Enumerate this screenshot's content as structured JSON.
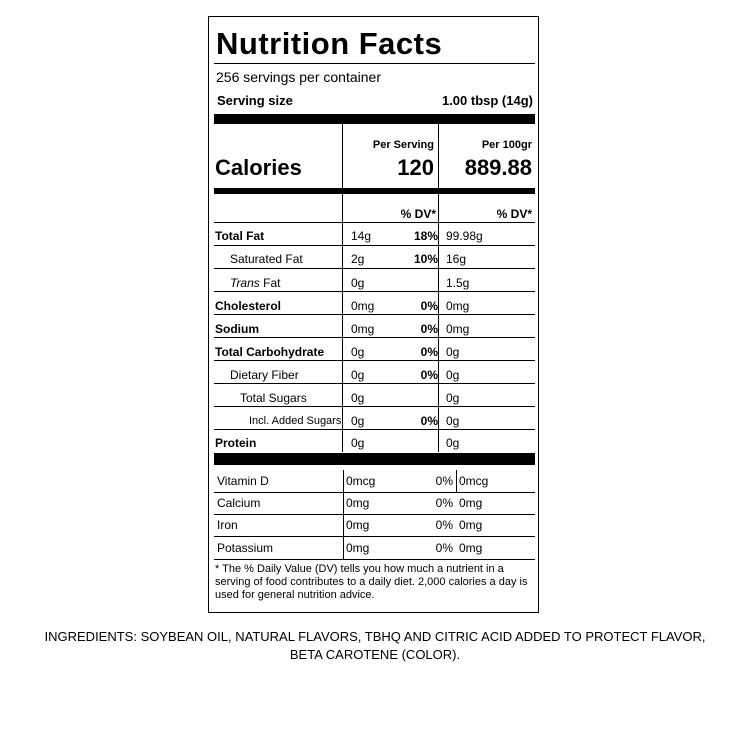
{
  "label": {
    "title": "Nutrition Facts",
    "servings_per_container": "256 servings per container",
    "serving_size_label": "Serving size",
    "serving_size_value": "1.00 tbsp (14g)",
    "per_serving_header": "Per Serving",
    "per_100_header": "Per 100gr",
    "calories_label": "Calories",
    "calories_per_serving": "120",
    "calories_per_100": "889.88",
    "dv_header_1": "% DV*",
    "dv_header_2": "% DV*",
    "nutrients": [
      {
        "name": "Total Fat",
        "amount": "14g",
        "dv": "18%",
        "amount_100": "99.98g"
      },
      {
        "name": "Saturated Fat",
        "amount": "2g",
        "dv": "10%",
        "amount_100": "16g"
      },
      {
        "name_prefix": "Trans",
        "name_suffix": " Fat",
        "amount": "0g",
        "dv": "",
        "amount_100": "1.5g"
      },
      {
        "name": "Cholesterol",
        "amount": "0mg",
        "dv": "0%",
        "amount_100": "0mg"
      },
      {
        "name": "Sodium",
        "amount": "0mg",
        "dv": "0%",
        "amount_100": "0mg"
      },
      {
        "name": "Total Carbohydrate",
        "amount": "0g",
        "dv": "0%",
        "amount_100": "0g"
      },
      {
        "name": "Dietary Fiber",
        "amount": "0g",
        "dv": "0%",
        "amount_100": "0g"
      },
      {
        "name": "Total Sugars",
        "amount": "0g",
        "dv": "",
        "amount_100": "0g"
      },
      {
        "name": "Incl. Added Sugars",
        "amount": "0g",
        "dv": "0%",
        "amount_100": "0g"
      },
      {
        "name": "Protein",
        "amount": "0g",
        "dv": "",
        "amount_100": "0g"
      }
    ],
    "vitamins": [
      {
        "name": "Vitamin D",
        "amount": "0mcg",
        "dv": "0%",
        "amount_100": "0mcg"
      },
      {
        "name": "Calcium",
        "amount": "0mg",
        "dv": "0%",
        "amount_100": "0mg"
      },
      {
        "name": "Iron",
        "amount": "0mg",
        "dv": "0%",
        "amount_100": "0mg"
      },
      {
        "name": "Potassium",
        "amount": "0mg",
        "dv": "0%",
        "amount_100": "0mg"
      }
    ],
    "footnote": "* The % Daily Value (DV) tells you how much a nutrient in a serving of food contributes to a daily diet. 2,000 calories a day is used for general nutrition advice."
  },
  "ingredients": "INGREDIENTS: SOYBEAN OIL, NATURAL FLAVORS, TBHQ AND CITRIC ACID ADDED TO PROTECT FLAVOR, BETA CAROTENE (COLOR)."
}
